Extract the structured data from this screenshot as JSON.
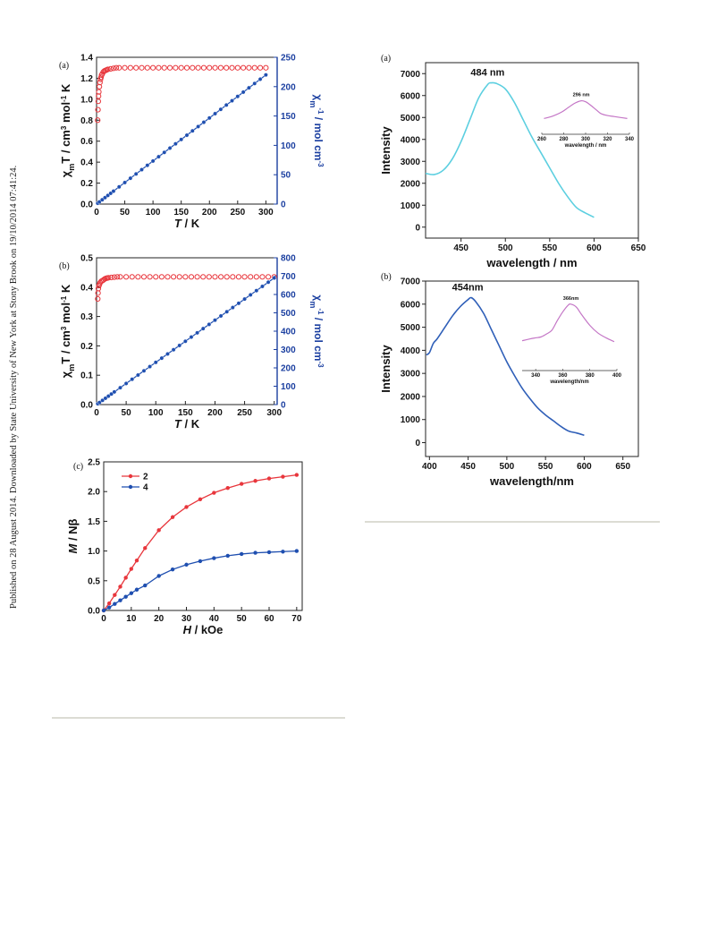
{
  "watermark": "Published on 28 August 2014. Downloaded by State University of New York at Stony Brook on 19/10/2014 07:41:24.",
  "colors": {
    "red": "#e8363c",
    "blue": "#1f4fb0",
    "cyan": "#5ccfe0",
    "purple": "#c476c6",
    "rightAxis": "#1b3fa0"
  },
  "chart_data": [
    {
      "id": "fig-left-a",
      "type": "scatter",
      "panel_label": "(a)",
      "xlabel": "T / K",
      "ylabel": "χmT / cm3 mol-1 K",
      "y2label": "χm-1 / mol cm-3",
      "xlim": [
        0,
        320
      ],
      "ylim": [
        0,
        1.4
      ],
      "y2lim": [
        0,
        250
      ],
      "xticks": [
        0,
        50,
        100,
        150,
        200,
        250,
        300
      ],
      "yticks": [
        "0.0",
        "0.2",
        "0.4",
        "0.6",
        "0.8",
        "1.0",
        "1.2",
        "1.4"
      ],
      "y2ticks": [
        0,
        50,
        100,
        150,
        200,
        250
      ],
      "series": [
        {
          "axis": "left",
          "color": "#e8363c",
          "marker": "open-circle",
          "x": [
            2,
            2.5,
            3,
            3.5,
            4,
            5,
            6,
            7,
            8,
            9,
            10,
            12,
            14,
            16,
            18,
            20,
            25,
            30,
            35,
            40,
            50,
            60,
            70,
            80,
            90,
            100,
            110,
            120,
            130,
            140,
            150,
            160,
            170,
            180,
            190,
            200,
            210,
            220,
            230,
            240,
            250,
            260,
            270,
            280,
            290,
            300
          ],
          "y": [
            0.8,
            0.9,
            0.98,
            1.03,
            1.07,
            1.12,
            1.16,
            1.19,
            1.21,
            1.23,
            1.24,
            1.26,
            1.27,
            1.275,
            1.28,
            1.285,
            1.29,
            1.295,
            1.3,
            1.3,
            1.3,
            1.3,
            1.3,
            1.3,
            1.3,
            1.3,
            1.3,
            1.3,
            1.3,
            1.3,
            1.3,
            1.3,
            1.3,
            1.3,
            1.3,
            1.3,
            1.3,
            1.3,
            1.3,
            1.3,
            1.3,
            1.3,
            1.3,
            1.3,
            1.3,
            1.3
          ]
        },
        {
          "axis": "right",
          "color": "#1f4fb0",
          "marker": "filled-circle-line",
          "slope": 0.7333,
          "x": [
            2,
            5,
            10,
            15,
            20,
            25,
            30,
            40,
            50,
            60,
            70,
            80,
            90,
            100,
            110,
            120,
            130,
            140,
            150,
            160,
            170,
            180,
            190,
            200,
            210,
            220,
            230,
            240,
            250,
            260,
            270,
            280,
            290,
            300
          ]
        }
      ]
    },
    {
      "id": "fig-left-b",
      "type": "scatter",
      "panel_label": "(b)",
      "xlabel": "T / K",
      "ylabel": "χmT / cm3 mol-1 K",
      "y2label": "χm-1 / mol cm-3",
      "xlim": [
        0,
        305
      ],
      "ylim": [
        0,
        0.5
      ],
      "y2lim": [
        0,
        800
      ],
      "xticks": [
        0,
        50,
        100,
        150,
        200,
        250,
        300
      ],
      "yticks": [
        "0.0",
        "0.1",
        "0.2",
        "0.3",
        "0.4",
        "0.5"
      ],
      "y2ticks": [
        0,
        100,
        200,
        300,
        400,
        500,
        600,
        700,
        800
      ],
      "series": [
        {
          "axis": "left",
          "color": "#e8363c",
          "marker": "open-circle",
          "x": [
            2,
            2.5,
            3,
            4,
            5,
            6,
            8,
            10,
            12,
            14,
            16,
            18,
            20,
            25,
            30,
            35,
            40,
            50,
            60,
            70,
            80,
            90,
            100,
            110,
            120,
            130,
            140,
            150,
            160,
            170,
            180,
            190,
            200,
            210,
            220,
            230,
            240,
            250,
            260,
            270,
            280,
            290,
            300
          ],
          "y": [
            0.36,
            0.38,
            0.395,
            0.405,
            0.41,
            0.415,
            0.42,
            0.422,
            0.425,
            0.428,
            0.43,
            0.431,
            0.432,
            0.433,
            0.434,
            0.435,
            0.435,
            0.435,
            0.435,
            0.435,
            0.435,
            0.435,
            0.435,
            0.435,
            0.435,
            0.435,
            0.435,
            0.435,
            0.435,
            0.435,
            0.435,
            0.435,
            0.435,
            0.435,
            0.435,
            0.435,
            0.435,
            0.435,
            0.435,
            0.435,
            0.435,
            0.435,
            0.435
          ]
        },
        {
          "axis": "right",
          "color": "#1f4fb0",
          "marker": "filled-circle-line",
          "slope": 2.3,
          "x": [
            2,
            5,
            10,
            15,
            20,
            25,
            30,
            40,
            50,
            60,
            70,
            80,
            90,
            100,
            110,
            120,
            130,
            140,
            150,
            160,
            170,
            180,
            190,
            200,
            210,
            220,
            230,
            240,
            250,
            260,
            270,
            280,
            290,
            300
          ]
        }
      ]
    },
    {
      "id": "fig-left-c",
      "type": "line",
      "panel_label": "(c)",
      "xlabel": "H / kOe",
      "ylabel": "M / Nβ",
      "xlim": [
        0,
        72
      ],
      "ylim": [
        0,
        2.5
      ],
      "xticks": [
        0,
        10,
        20,
        30,
        40,
        50,
        60,
        70
      ],
      "yticks": [
        "0.0",
        "0.5",
        "1.0",
        "1.5",
        "2.0",
        "2.5"
      ],
      "legend": "top-left",
      "series": [
        {
          "name": "2",
          "color": "#e8363c",
          "x": [
            0,
            2,
            4,
            6,
            8,
            10,
            12,
            15,
            20,
            25,
            30,
            35,
            40,
            45,
            50,
            55,
            60,
            65,
            70
          ],
          "y": [
            0,
            0.12,
            0.26,
            0.4,
            0.55,
            0.7,
            0.84,
            1.05,
            1.35,
            1.57,
            1.74,
            1.87,
            1.98,
            2.06,
            2.13,
            2.18,
            2.22,
            2.25,
            2.28
          ]
        },
        {
          "name": "4",
          "color": "#1f4fb0",
          "x": [
            0,
            2,
            4,
            6,
            8,
            10,
            12,
            15,
            20,
            25,
            30,
            35,
            40,
            45,
            50,
            55,
            60,
            65,
            70
          ],
          "y": [
            0,
            0.05,
            0.11,
            0.17,
            0.23,
            0.29,
            0.35,
            0.42,
            0.58,
            0.69,
            0.77,
            0.83,
            0.88,
            0.92,
            0.95,
            0.97,
            0.98,
            0.99,
            1.0
          ]
        }
      ]
    },
    {
      "id": "fig-right-a",
      "type": "line",
      "panel_label": "(a)",
      "xlabel": "wavelength / nm",
      "ylabel": "Intensity",
      "xlim": [
        410,
        650
      ],
      "ylim": [
        -500,
        7500
      ],
      "xticks": [
        450,
        500,
        550,
        600,
        650
      ],
      "yticks": [
        0,
        1000,
        2000,
        3000,
        4000,
        5000,
        6000,
        7000
      ],
      "annotation": "484 nm",
      "series": [
        {
          "color": "#5ccfe0",
          "x": [
            410,
            420,
            430,
            440,
            450,
            460,
            470,
            480,
            484,
            490,
            500,
            510,
            520,
            530,
            540,
            550,
            560,
            570,
            580,
            590,
            600
          ],
          "y": [
            2450,
            2400,
            2600,
            3100,
            3900,
            4900,
            5900,
            6500,
            6580,
            6550,
            6300,
            5700,
            4900,
            4100,
            3400,
            2700,
            2000,
            1400,
            900,
            650,
            450
          ]
        }
      ],
      "inset": {
        "xlabel": "wavelength / nm",
        "xlim": [
          260,
          340
        ],
        "xticks": [
          260,
          280,
          300,
          320,
          340
        ],
        "ymax": 8000,
        "annotation": "296 nm",
        "color": "#c476c6",
        "x": [
          262,
          270,
          278,
          284,
          290,
          296,
          300,
          304,
          310,
          314,
          320,
          326,
          332,
          338
        ],
        "y": [
          3200,
          3700,
          4500,
          5400,
          6300,
          6800,
          6600,
          6000,
          4900,
          4200,
          3800,
          3600,
          3400,
          3200
        ]
      }
    },
    {
      "id": "fig-right-b",
      "type": "line",
      "panel_label": "(b)",
      "xlabel": "wavelength/nm",
      "ylabel": "Intensity",
      "xlim": [
        395,
        670
      ],
      "ylim": [
        -600,
        7000
      ],
      "xticks": [
        400,
        450,
        500,
        550,
        600,
        650
      ],
      "yticks": [
        0,
        1000,
        2000,
        3000,
        4000,
        5000,
        6000,
        7000
      ],
      "annotation": "454nm",
      "series": [
        {
          "color": "#2f5fb8",
          "x": [
            396,
            400,
            405,
            410,
            420,
            430,
            440,
            450,
            454,
            460,
            470,
            480,
            490,
            500,
            510,
            520,
            530,
            540,
            550,
            560,
            570,
            580,
            590,
            600
          ],
          "y": [
            3800,
            3900,
            4300,
            4500,
            5000,
            5500,
            5900,
            6200,
            6280,
            6100,
            5600,
            4900,
            4200,
            3500,
            2900,
            2350,
            1900,
            1500,
            1200,
            950,
            700,
            500,
            420,
            320
          ]
        }
      ],
      "inset": {
        "xlabel": "wavelength/nm",
        "xlim": [
          330,
          400
        ],
        "xticks": [
          340,
          360,
          380,
          400
        ],
        "ymax": 8000,
        "annotation": "366nm",
        "color": "#c476c6",
        "x": [
          330,
          336,
          340,
          344,
          348,
          352,
          356,
          360,
          364,
          366,
          370,
          374,
          380,
          386,
          392,
          398
        ],
        "y": [
          3100,
          3300,
          3400,
          3500,
          3800,
          4200,
          5200,
          6100,
          6800,
          6900,
          6600,
          5800,
          4700,
          3900,
          3400,
          3000
        ]
      }
    }
  ]
}
